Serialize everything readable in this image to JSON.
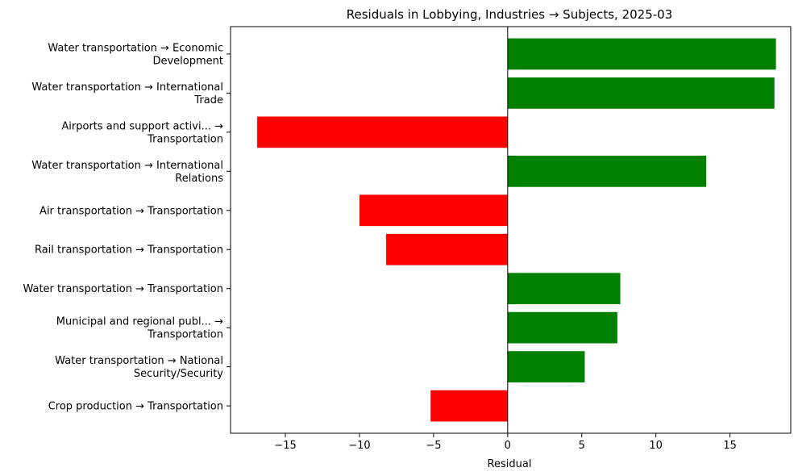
{
  "chart_data": {
    "type": "bar",
    "orientation": "horizontal",
    "title": "Residuals in Lobbying, Industries → Subjects, 2025-03",
    "xlabel": "Residual",
    "ylabel": "",
    "xlim": [
      -18.7,
      19.1
    ],
    "xticks": [
      -15,
      -10,
      -5,
      0,
      5,
      10,
      15
    ],
    "xtick_labels": [
      "−15",
      "−10",
      "−5",
      "0",
      "5",
      "10",
      "15"
    ],
    "grid": false,
    "zero_line": true,
    "colors": {
      "positive": "#008000",
      "negative": "#ff0000"
    },
    "categories": [
      [
        "Water transportation → Economic",
        "Development"
      ],
      [
        "Water transportation → International",
        "Trade"
      ],
      [
        "Airports and support activi... →",
        "Transportation"
      ],
      [
        "Water transportation → International",
        "Relations"
      ],
      [
        "Air transportation → Transportation"
      ],
      [
        "Rail transportation → Transportation"
      ],
      [
        "Water transportation → Transportation"
      ],
      [
        "Municipal and regional publ... →",
        "Transportation"
      ],
      [
        "Water transportation → National",
        "Security/Security"
      ],
      [
        "Crop production → Transportation"
      ]
    ],
    "values": [
      18.1,
      18.0,
      -16.9,
      13.4,
      -10.0,
      -8.2,
      7.6,
      7.4,
      5.2,
      -5.2
    ]
  }
}
